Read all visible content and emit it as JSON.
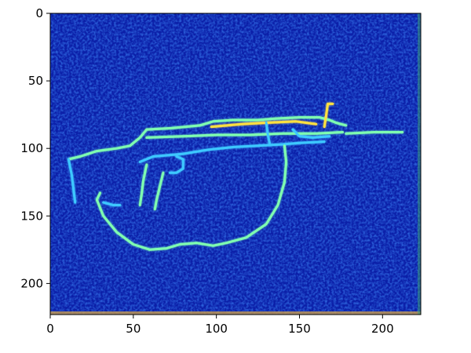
{
  "chart_data": {
    "type": "heatmap",
    "colormap": "jet",
    "background_color": "#0b1fa8",
    "highlight_colors": [
      "#3cc8ff",
      "#7fffb0",
      "#ffe040",
      "#ff9020"
    ],
    "xlim": [
      0,
      223
    ],
    "ylim": [
      223,
      0
    ],
    "x_ticks": [
      "0",
      "50",
      "100",
      "150",
      "200"
    ],
    "y_ticks": [
      "0",
      "50",
      "100",
      "150",
      "200"
    ],
    "grid": false,
    "title": "",
    "xlabel": "",
    "ylabel": "",
    "edge_paths": [
      {
        "name": "stock-top-and-receiver",
        "color": "#7fffb0",
        "points": [
          [
            11,
            108
          ],
          [
            18,
            106
          ],
          [
            28,
            102
          ],
          [
            40,
            100
          ],
          [
            48,
            98
          ],
          [
            54,
            92
          ],
          [
            58,
            86
          ],
          [
            73,
            85
          ],
          [
            90,
            83
          ],
          [
            98,
            80
          ],
          [
            110,
            79
          ],
          [
            125,
            79
          ],
          [
            135,
            78
          ],
          [
            150,
            77
          ],
          [
            162,
            77
          ],
          [
            168,
            79
          ],
          [
            172,
            81
          ],
          [
            178,
            83
          ]
        ]
      },
      {
        "name": "stock-butt",
        "color": "#3cc8ff",
        "points": [
          [
            11,
            108
          ],
          [
            13,
            120
          ],
          [
            14,
            130
          ],
          [
            15,
            140
          ]
        ]
      },
      {
        "name": "barrel",
        "color": "#7fffb0",
        "points": [
          [
            178,
            89
          ],
          [
            195,
            88
          ],
          [
            212,
            88
          ]
        ]
      },
      {
        "name": "front-sight",
        "color": "#ffe040",
        "points": [
          [
            165,
            84
          ],
          [
            166,
            76
          ],
          [
            167,
            67
          ],
          [
            170,
            67
          ]
        ]
      },
      {
        "name": "receiver-lower",
        "color": "#3cc8ff",
        "points": [
          [
            54,
            110
          ],
          [
            62,
            106
          ],
          [
            80,
            104
          ],
          [
            95,
            101
          ],
          [
            110,
            99
          ],
          [
            125,
            98
          ],
          [
            140,
            97
          ],
          [
            150,
            96
          ],
          [
            165,
            95
          ]
        ]
      },
      {
        "name": "upper-rail",
        "color": "#ffe040",
        "points": [
          [
            97,
            84
          ],
          [
            115,
            82
          ],
          [
            130,
            81
          ],
          [
            148,
            80
          ],
          [
            160,
            82
          ]
        ]
      },
      {
        "name": "mid-rail",
        "color": "#7fffb0",
        "points": [
          [
            58,
            92
          ],
          [
            80,
            91
          ],
          [
            100,
            90
          ],
          [
            120,
            90
          ],
          [
            140,
            89
          ],
          [
            160,
            89
          ],
          [
            176,
            88
          ]
        ]
      },
      {
        "name": "pistol-grip",
        "color": "#7fffb0",
        "points": [
          [
            58,
            112
          ],
          [
            56,
            124
          ],
          [
            55,
            134
          ],
          [
            54,
            142
          ]
        ]
      },
      {
        "name": "magazine-front",
        "color": "#7fffb0",
        "points": [
          [
            68,
            118
          ],
          [
            66,
            128
          ],
          [
            64,
            138
          ],
          [
            63,
            145
          ]
        ]
      },
      {
        "name": "trigger-guard",
        "color": "#3cc8ff",
        "points": [
          [
            72,
            118
          ],
          [
            76,
            118
          ],
          [
            80,
            115
          ],
          [
            80,
            108
          ],
          [
            76,
            106
          ]
        ]
      },
      {
        "name": "sling",
        "color": "#7fffb0",
        "points": [
          [
            141,
            98
          ],
          [
            142,
            110
          ],
          [
            141,
            125
          ],
          [
            137,
            142
          ],
          [
            130,
            156
          ],
          [
            118,
            166
          ],
          [
            106,
            170
          ],
          [
            98,
            172
          ],
          [
            88,
            170
          ],
          [
            78,
            171
          ],
          [
            70,
            174
          ],
          [
            60,
            175
          ],
          [
            50,
            171
          ],
          [
            40,
            162
          ],
          [
            32,
            150
          ],
          [
            28,
            138
          ],
          [
            30,
            133
          ]
        ]
      },
      {
        "name": "sling-loop",
        "color": "#3cc8ff",
        "points": [
          [
            32,
            140
          ],
          [
            38,
            142
          ],
          [
            42,
            142
          ]
        ]
      },
      {
        "name": "gas-block",
        "color": "#3cc8ff",
        "points": [
          [
            130,
            81
          ],
          [
            131,
            90
          ],
          [
            132,
            96
          ]
        ]
      },
      {
        "name": "hand-guard",
        "color": "#3cc8ff",
        "points": [
          [
            146,
            86
          ],
          [
            150,
            91
          ],
          [
            158,
            92
          ],
          [
            168,
            91
          ]
        ]
      }
    ]
  }
}
